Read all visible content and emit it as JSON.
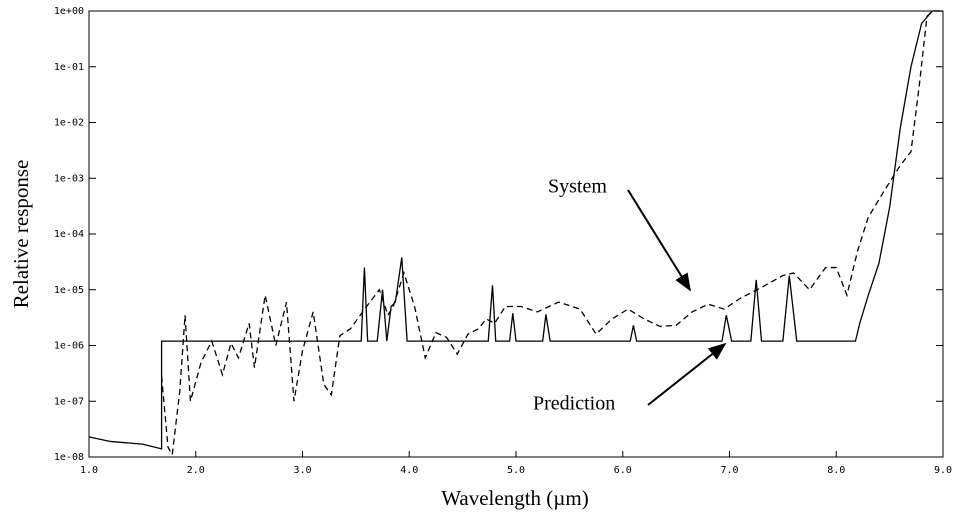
{
  "chart_data": {
    "type": "line",
    "yscale": "log",
    "x_label": "Wavelength (µm)",
    "y_label": "Relative response",
    "xlim": [
      1.0,
      9.0
    ],
    "xticks": [
      {
        "value": 1,
        "label": "1.0"
      },
      {
        "value": 2,
        "label": "2.0"
      },
      {
        "value": 3,
        "label": "3.0"
      },
      {
        "value": 4,
        "label": "4.0"
      },
      {
        "value": 5,
        "label": "5.0"
      },
      {
        "value": 6,
        "label": "6.0"
      },
      {
        "value": 7,
        "label": "7.0"
      },
      {
        "value": 8,
        "label": "8.0"
      },
      {
        "value": 9,
        "label": "9.0"
      }
    ],
    "ylim": [
      1e-08,
      1
    ],
    "yticks": [
      {
        "value": 1,
        "label": "1e+00"
      },
      {
        "value": 0.1,
        "label": "1e-01"
      },
      {
        "value": 0.01,
        "label": "1e-02"
      },
      {
        "value": 0.001,
        "label": "1e-03"
      },
      {
        "value": 0.0001,
        "label": "1e-04"
      },
      {
        "value": 1e-05,
        "label": "1e-05"
      },
      {
        "value": 1e-06,
        "label": "1e-06"
      },
      {
        "value": 1e-07,
        "label": "1e-07"
      },
      {
        "value": 1e-08,
        "label": "1e-08"
      }
    ],
    "grid": false,
    "series": [
      {
        "name": "System",
        "color": "#000000",
        "line_style": "dashed",
        "x": [
          1.68,
          1.74,
          1.78,
          1.85,
          1.9,
          1.95,
          2.05,
          2.15,
          2.25,
          2.33,
          2.4,
          2.5,
          2.55,
          2.65,
          2.75,
          2.85,
          2.92,
          3.0,
          3.1,
          3.2,
          3.27,
          3.35,
          3.45,
          3.6,
          3.72,
          3.8,
          3.85,
          3.95,
          4.05,
          4.15,
          4.25,
          4.35,
          4.45,
          4.55,
          4.65,
          4.72,
          4.8,
          4.9,
          5.05,
          5.2,
          5.4,
          5.6,
          5.75,
          5.9,
          6.05,
          6.2,
          6.35,
          6.5,
          6.65,
          6.8,
          6.95,
          7.1,
          7.3,
          7.5,
          7.6,
          7.75,
          7.9,
          8.0,
          8.1,
          8.2,
          8.3,
          8.45,
          8.6,
          8.7,
          8.78,
          8.85,
          8.9,
          9.0
        ],
        "values": [
          2.8e-07,
          1.5e-08,
          1.1e-08,
          1.5e-07,
          3.5e-06,
          1e-07,
          5e-07,
          1.2e-06,
          3e-07,
          1.1e-06,
          6e-07,
          2.5e-06,
          4e-07,
          8e-06,
          1e-06,
          6e-06,
          1e-07,
          8e-07,
          4e-06,
          2e-07,
          1.3e-07,
          1.5e-06,
          2e-06,
          5e-06,
          1e-05,
          3.5e-06,
          5e-06,
          2e-05,
          5e-06,
          6e-07,
          1.7e-06,
          1.4e-06,
          7e-07,
          1.6e-06,
          2e-06,
          3e-06,
          2.5e-06,
          5e-06,
          5e-06,
          4e-06,
          6e-06,
          4.5e-06,
          1.6e-06,
          3e-06,
          4.5e-06,
          3e-06,
          2.2e-06,
          2.3e-06,
          4e-06,
          5.5e-06,
          4.5e-06,
          7e-06,
          1.1e-05,
          1.8e-05,
          2e-05,
          1e-05,
          2.5e-05,
          2.5e-05,
          8e-06,
          5e-05,
          0.0002,
          0.0006,
          0.0017,
          0.003,
          0.05,
          0.8,
          1,
          1
        ]
      },
      {
        "name": "Prediction",
        "color": "#000000",
        "line_style": "solid",
        "x": [
          1.0,
          1.2,
          1.5,
          1.68,
          1.68,
          3.55,
          3.58,
          3.61,
          3.7,
          3.75,
          3.79,
          3.83,
          3.87,
          3.93,
          3.98,
          4.74,
          4.78,
          4.81,
          4.94,
          4.97,
          5.0,
          5.25,
          5.28,
          5.32,
          6.07,
          6.1,
          6.13,
          6.93,
          6.97,
          7.02,
          7.2,
          7.25,
          7.3,
          7.5,
          7.56,
          7.63,
          8.18,
          8.22,
          8.3,
          8.4,
          8.5,
          8.6,
          8.7,
          8.8,
          8.9,
          9.0
        ],
        "values": [
          2.3e-08,
          1.9e-08,
          1.7e-08,
          1.4e-08,
          1.2e-06,
          1.2e-06,
          2.5e-05,
          1.2e-06,
          1.2e-06,
          1e-05,
          1.2e-06,
          5e-06,
          6e-06,
          3.8e-05,
          1.2e-06,
          1.2e-06,
          1.2e-05,
          1.2e-06,
          1.2e-06,
          3.8e-06,
          1.2e-06,
          1.2e-06,
          3.6e-06,
          1.2e-06,
          1.2e-06,
          2.3e-06,
          1.2e-06,
          1.2e-06,
          3.5e-06,
          1.2e-06,
          1.2e-06,
          1.5e-05,
          1.2e-06,
          1.2e-06,
          1.8e-05,
          1.2e-06,
          1.2e-06,
          2.5e-06,
          8e-06,
          3e-05,
          0.0003,
          0.008,
          0.1,
          0.6,
          1,
          1
        ]
      }
    ]
  }
}
